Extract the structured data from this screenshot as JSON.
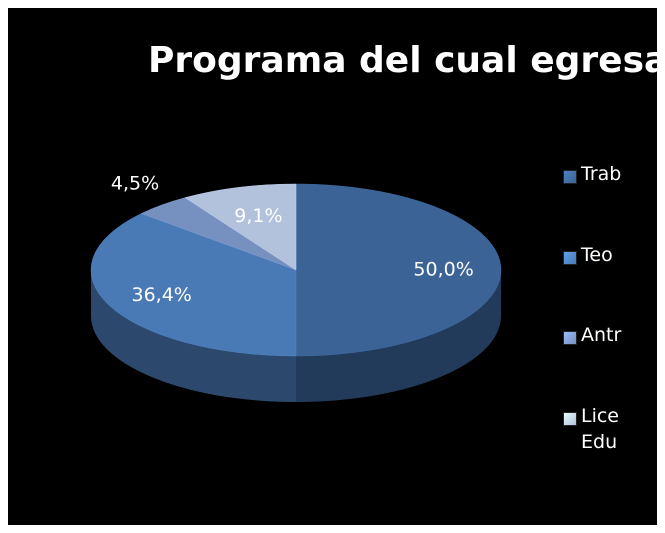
{
  "chart_data": {
    "type": "pie3d",
    "title": "Programa del cual egresar",
    "categories": [
      "Trab",
      "Teo",
      "Antr",
      "Lice Edu"
    ],
    "values": [
      50.0,
      36.4,
      4.5,
      9.1
    ],
    "value_labels": [
      "50,0%",
      "36,4%",
      "4,5%",
      "9,1%"
    ],
    "colors": [
      "#3b6396",
      "#4a7ab5",
      "#7690c0",
      "#b2c1dc"
    ],
    "legend": "right"
  }
}
